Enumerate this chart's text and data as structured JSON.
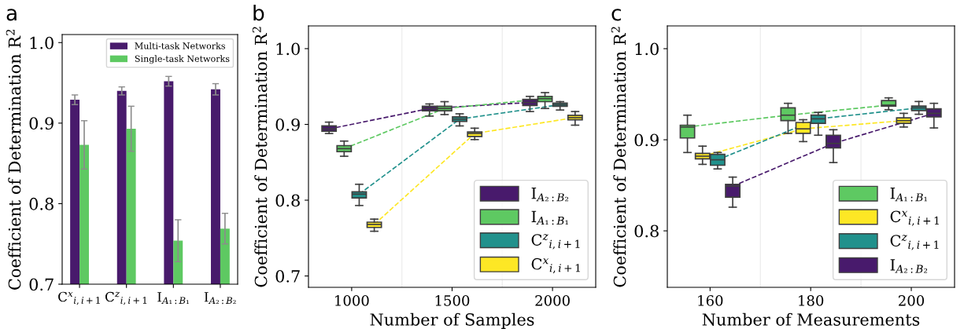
{
  "chart_data": [
    {
      "type": "bar",
      "title": "a",
      "ylabel": "Coefficient of Determination R$^{2}$",
      "categories": [
        "C$^{x}$$_{i,i+1}$",
        "C$^{z}$$_{i,i+1}$",
        "I$_{A₁:B₁}$",
        "I$_{A₂:B₂}$"
      ],
      "series": [
        {
          "name": "Multi-task Networks",
          "color": "#481a6c",
          "values": [
            0.929,
            0.94,
            0.952,
            0.942
          ],
          "errors": [
            0.006,
            0.005,
            0.006,
            0.007
          ]
        },
        {
          "name": "Single-task Networks",
          "color": "#5ec962",
          "values": [
            0.873,
            0.893,
            0.754,
            0.769
          ],
          "errors": [
            0.03,
            0.028,
            0.026,
            0.019
          ]
        }
      ],
      "ylim": [
        0.7,
        1.01
      ],
      "yticks": [
        {
          "value": 0.7,
          "label": "0.7"
        },
        {
          "value": 0.8,
          "label": "0.8"
        },
        {
          "value": 0.9,
          "label": "0.9"
        },
        {
          "value": 1,
          "label": "1.0"
        }
      ],
      "legend": "top right",
      "grid": false
    },
    {
      "type": "box",
      "title": "b",
      "xlabel": "Number of Samples",
      "ylabel": "Coefficient of Determination R$^{2}$",
      "series": [
        {
          "type": "line",
          "color": "#481a6c",
          "x": [
            887.5,
            1387.5,
            1887.5
          ],
          "values": [
            0.894,
            0.921,
            0.929
          ]
        },
        {
          "type": "line",
          "color": "#5ec962",
          "x": [
            962.5,
            1462.5,
            1962.5
          ],
          "values": [
            0.868,
            0.921,
            0.934
          ]
        },
        {
          "type": "line",
          "color": "#21918c",
          "x": [
            1037.5,
            1537.5,
            2037.5
          ],
          "values": [
            0.808,
            0.907,
            0.926
          ]
        },
        {
          "type": "line",
          "color": "#fde725",
          "x": [
            1112.5,
            1612.5,
            2112.5
          ],
          "values": [
            0.768,
            0.888,
            0.909
          ]
        },
        {
          "name": "I$_{A₂:B₂}$",
          "color": "#481a6c",
          "x": [
            887.5,
            1387.5,
            1887.5
          ],
          "boxes": [
            {
              "low": 0.888,
              "q1": 0.891,
              "median": 0.894,
              "q3": 0.898,
              "high": 0.903
            },
            {
              "low": 0.911,
              "q1": 0.918,
              "median": 0.921,
              "q3": 0.924,
              "high": 0.927
            },
            {
              "low": 0.917,
              "q1": 0.925,
              "median": 0.929,
              "q3": 0.933,
              "high": 0.937
            }
          ]
        },
        {
          "name": "I$_{A₁:B₁}$",
          "color": "#5ec962",
          "x": [
            962.5,
            1462.5,
            1962.5
          ],
          "boxes": [
            {
              "low": 0.858,
              "q1": 0.864,
              "median": 0.868,
              "q3": 0.872,
              "high": 0.878
            },
            {
              "low": 0.913,
              "q1": 0.918,
              "median": 0.921,
              "q3": 0.924,
              "high": 0.93
            },
            {
              "low": 0.921,
              "q1": 0.93,
              "median": 0.934,
              "q3": 0.937,
              "high": 0.942
            }
          ]
        },
        {
          "name": "C$^{z}$$_{i,i+1}$",
          "color": "#21918c",
          "x": [
            1037.5,
            1537.5,
            2037.5
          ],
          "boxes": [
            {
              "low": 0.793,
              "q1": 0.803,
              "median": 0.808,
              "q3": 0.811,
              "high": 0.821
            },
            {
              "low": 0.898,
              "q1": 0.904,
              "median": 0.907,
              "q3": 0.91,
              "high": 0.914
            },
            {
              "low": 0.919,
              "q1": 0.924,
              "median": 0.926,
              "q3": 0.928,
              "high": 0.93
            }
          ]
        },
        {
          "name": "C$^{x}$$_{i,i+1}$",
          "color": "#fde725",
          "x": [
            1112.5,
            1612.5,
            2112.5
          ],
          "boxes": [
            {
              "low": 0.759,
              "q1": 0.764,
              "median": 0.768,
              "q3": 0.771,
              "high": 0.775
            },
            {
              "low": 0.88,
              "q1": 0.884,
              "median": 0.888,
              "q3": 0.89,
              "high": 0.895
            },
            {
              "low": 0.899,
              "q1": 0.906,
              "median": 0.909,
              "q3": 0.912,
              "high": 0.917
            }
          ]
        }
      ],
      "xlim": [
        785,
        2215
      ],
      "xticks": [
        1000,
        1500,
        2000
      ],
      "ylim": [
        0.685,
        1.03
      ],
      "yticks": [
        {
          "value": 0.7,
          "label": "0.7"
        },
        {
          "value": 0.8,
          "label": "0.8"
        },
        {
          "value": 0.9,
          "label": "0.9"
        },
        {
          "value": 1,
          "label": "1.0"
        }
      ],
      "ref_lines": [
        {
          "axis": "x",
          "value": 1250,
          "color": "#eeeeee"
        },
        {
          "axis": "x",
          "value": 1750,
          "color": "#eeeeee"
        }
      ],
      "legend": "bottom right",
      "line_style": "dashed",
      "grid": false
    },
    {
      "type": "box",
      "title": "c",
      "xlabel": "Number of Measurements",
      "ylabel": "Coefficient of Determination R$^{2}$",
      "series": [
        {
          "type": "line",
          "color": "#5ec962",
          "x": [
            155.5,
            175.5,
            195.5
          ],
          "values": [
            0.914,
            0.927,
            0.938
          ]
        },
        {
          "type": "line",
          "color": "#fde725",
          "x": [
            158.5,
            178.5,
            198.5
          ],
          "values": [
            0.882,
            0.912,
            0.921
          ]
        },
        {
          "type": "line",
          "color": "#21918c",
          "x": [
            161.5,
            181.5,
            201.5
          ],
          "values": [
            0.878,
            0.923,
            0.935
          ]
        },
        {
          "type": "line",
          "color": "#481a6c",
          "x": [
            164.5,
            184.5,
            204.5
          ],
          "values": [
            0.849,
            0.896,
            0.929
          ]
        },
        {
          "name": "I$_{A₁:B₁}$",
          "color": "#5ec962",
          "x": [
            155.5,
            175.5,
            195.5
          ],
          "boxes": [
            {
              "low": 0.886,
              "q1": 0.902,
              "median": 0.914,
              "q3": 0.916,
              "high": 0.927
            },
            {
              "low": 0.907,
              "q1": 0.921,
              "median": 0.927,
              "q3": 0.935,
              "high": 0.94
            },
            {
              "low": 0.933,
              "q1": 0.937,
              "median": 0.938,
              "q3": 0.943,
              "high": 0.946
            }
          ]
        },
        {
          "name": "C$^{x}$$_{i,i+1}$",
          "color": "#fde725",
          "x": [
            158.5,
            178.5,
            198.5
          ],
          "boxes": [
            {
              "low": 0.873,
              "q1": 0.879,
              "median": 0.882,
              "q3": 0.885,
              "high": 0.893
            },
            {
              "low": 0.898,
              "q1": 0.907,
              "median": 0.912,
              "q3": 0.919,
              "high": 0.922
            },
            {
              "low": 0.914,
              "q1": 0.918,
              "median": 0.921,
              "q3": 0.924,
              "high": 0.929
            }
          ]
        },
        {
          "name": "C$^{z}$$_{i,i+1}$",
          "color": "#21918c",
          "x": [
            161.5,
            181.5,
            201.5
          ],
          "boxes": [
            {
              "low": 0.868,
              "q1": 0.872,
              "median": 0.878,
              "q3": 0.884,
              "high": 0.886
            },
            {
              "low": 0.905,
              "q1": 0.918,
              "median": 0.923,
              "q3": 0.927,
              "high": 0.93
            },
            {
              "low": 0.928,
              "q1": 0.932,
              "median": 0.935,
              "q3": 0.937,
              "high": 0.942
            }
          ]
        },
        {
          "name": "I$_{A₂:B₂}$",
          "color": "#481a6c",
          "x": [
            164.5,
            184.5,
            204.5
          ],
          "boxes": [
            {
              "low": 0.826,
              "q1": 0.837,
              "median": 0.849,
              "q3": 0.851,
              "high": 0.859
            },
            {
              "low": 0.875,
              "q1": 0.891,
              "median": 0.896,
              "q3": 0.905,
              "high": 0.911
            },
            {
              "low": 0.913,
              "q1": 0.925,
              "median": 0.929,
              "q3": 0.934,
              "high": 0.94
            }
          ]
        }
      ],
      "xlim": [
        151.5,
        208.6
      ],
      "xticks": [
        160,
        180,
        200
      ],
      "ylim": [
        0.738,
        1.025
      ],
      "yticks": [
        {
          "value": 0.8,
          "label": "0.8"
        },
        {
          "value": 0.9,
          "label": "0.9"
        },
        {
          "value": 1,
          "label": "1.0"
        }
      ],
      "ref_lines": [
        {
          "axis": "x",
          "value": 170,
          "color": "#eeeeee"
        },
        {
          "axis": "x",
          "value": 190,
          "color": "#eeeeee"
        }
      ],
      "legend": "bottom right",
      "line_style": "dashed",
      "grid": false
    }
  ]
}
